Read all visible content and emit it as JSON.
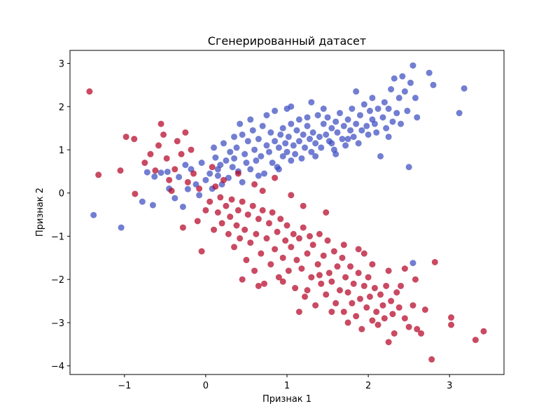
{
  "chart_data": {
    "type": "scatter",
    "title": "Сгенерированный датасет",
    "xlabel": "Признак 1",
    "ylabel": "Признак 2",
    "xlim": [
      -1.67,
      3.67
    ],
    "ylim": [
      -4.2,
      3.3
    ],
    "xticks": [
      -1,
      0,
      1,
      2,
      3
    ],
    "yticks": [
      -4,
      -3,
      -2,
      -1,
      0,
      1,
      2,
      3
    ],
    "xtick_labels": [
      "−1",
      "0",
      "1",
      "2",
      "3"
    ],
    "ytick_labels": [
      "−4",
      "−3",
      "−2",
      "−1",
      "0",
      "1",
      "2",
      "3"
    ],
    "grid": false,
    "legend": "none",
    "series": [
      {
        "color": "#3b4cc0",
        "points": [
          [
            -1.38,
            -0.51
          ],
          [
            -1.04,
            -0.8
          ],
          [
            -0.78,
            -0.2
          ],
          [
            -0.65,
            -0.28
          ],
          [
            -0.72,
            0.48
          ],
          [
            -0.63,
            0.38
          ],
          [
            -0.55,
            0.47
          ],
          [
            -0.47,
            0.49
          ],
          [
            -0.38,
            -0.12
          ],
          [
            -0.33,
            0.37
          ],
          [
            -0.28,
            -0.32
          ],
          [
            -0.22,
            0.09
          ],
          [
            -0.18,
            0.55
          ],
          [
            -0.12,
            0.2
          ],
          [
            -0.08,
            -0.05
          ],
          [
            -0.05,
            0.7
          ],
          [
            0.0,
            0.3
          ],
          [
            0.05,
            0.45
          ],
          [
            0.08,
            0.1
          ],
          [
            0.12,
            0.82
          ],
          [
            0.15,
            0.4
          ],
          [
            0.18,
            0.65
          ],
          [
            0.22,
            1.15
          ],
          [
            0.25,
            0.75
          ],
          [
            0.28,
            0.35
          ],
          [
            0.3,
            0.95
          ],
          [
            0.33,
            0.6
          ],
          [
            0.35,
            0.8
          ],
          [
            0.38,
            1.05
          ],
          [
            0.4,
            0.5
          ],
          [
            0.42,
            1.6
          ],
          [
            0.45,
            1.35
          ],
          [
            0.48,
            0.9
          ],
          [
            0.5,
            0.7
          ],
          [
            0.52,
            1.2
          ],
          [
            0.55,
            0.55
          ],
          [
            0.58,
            1.45
          ],
          [
            0.6,
            1.0
          ],
          [
            0.62,
            0.75
          ],
          [
            0.65,
            1.25
          ],
          [
            0.68,
            0.85
          ],
          [
            0.7,
            1.55
          ],
          [
            0.72,
            0.45
          ],
          [
            0.75,
            1.1
          ],
          [
            0.78,
            0.95
          ],
          [
            0.8,
            1.4
          ],
          [
            0.82,
            0.7
          ],
          [
            0.85,
            1.2
          ],
          [
            0.85,
            1.9
          ],
          [
            0.88,
            0.6
          ],
          [
            0.9,
            1.05
          ],
          [
            0.92,
            1.35
          ],
          [
            0.95,
            0.85
          ],
          [
            0.98,
            1.15
          ],
          [
            1.0,
            0.95
          ],
          [
            1.0,
            1.95
          ],
          [
            1.02,
            1.3
          ],
          [
            1.05,
            0.75
          ],
          [
            1.05,
            1.6
          ],
          [
            1.08,
            1.1
          ],
          [
            1.1,
            0.9
          ],
          [
            1.12,
            1.45
          ],
          [
            1.15,
            1.2
          ],
          [
            1.15,
            1.7
          ],
          [
            1.18,
            0.8
          ],
          [
            1.2,
            1.35
          ],
          [
            1.22,
            1.05
          ],
          [
            1.25,
            1.55
          ],
          [
            1.28,
            1.25
          ],
          [
            1.3,
            0.95
          ],
          [
            1.32,
            1.4
          ],
          [
            1.35,
            1.15
          ],
          [
            1.38,
            1.8
          ],
          [
            1.4,
            1.3
          ],
          [
            1.42,
            1.05
          ],
          [
            1.45,
            1.6
          ],
          [
            1.48,
            1.35
          ],
          [
            1.5,
            1.75
          ],
          [
            1.52,
            1.2
          ],
          [
            1.55,
            1.5
          ],
          [
            1.58,
            1.0
          ],
          [
            1.6,
            1.65
          ],
          [
            1.62,
            1.4
          ],
          [
            1.65,
            1.85
          ],
          [
            1.68,
            1.25
          ],
          [
            1.7,
            1.55
          ],
          [
            1.72,
            1.1
          ],
          [
            1.75,
            1.7
          ],
          [
            1.78,
            1.45
          ],
          [
            1.8,
            1.95
          ],
          [
            1.82,
            1.3
          ],
          [
            1.85,
            1.6
          ],
          [
            1.88,
            1.15
          ],
          [
            1.9,
            1.8
          ],
          [
            1.92,
            1.45
          ],
          [
            1.95,
            2.05
          ],
          [
            1.98,
            1.55
          ],
          [
            2.0,
            1.35
          ],
          [
            2.02,
            1.9
          ],
          [
            2.05,
            2.2
          ],
          [
            2.08,
            1.6
          ],
          [
            2.1,
            1.4
          ],
          [
            2.12,
            1.95
          ],
          [
            2.15,
            0.85
          ],
          [
            2.18,
            1.75
          ],
          [
            2.2,
            2.1
          ],
          [
            2.22,
            1.5
          ],
          [
            2.25,
            1.95
          ],
          [
            2.28,
            2.4
          ],
          [
            2.3,
            1.65
          ],
          [
            2.32,
            2.65
          ],
          [
            2.35,
            1.85
          ],
          [
            2.38,
            2.2
          ],
          [
            2.4,
            1.6
          ],
          [
            2.42,
            2.7
          ],
          [
            2.45,
            2.35
          ],
          [
            2.48,
            1.9
          ],
          [
            2.5,
            0.6
          ],
          [
            2.52,
            2.55
          ],
          [
            2.55,
            2.95
          ],
          [
            2.55,
            -1.62
          ],
          [
            2.58,
            2.2
          ],
          [
            2.6,
            1.75
          ],
          [
            2.75,
            2.78
          ],
          [
            2.8,
            2.5
          ],
          [
            3.12,
            1.85
          ],
          [
            3.18,
            2.42
          ],
          [
            0.1,
            1.05
          ],
          [
            0.2,
            0.2
          ],
          [
            0.35,
            1.3
          ],
          [
            0.55,
            1.7
          ],
          [
            0.65,
            0.4
          ],
          [
            0.75,
            1.8
          ],
          [
            0.95,
            1.5
          ],
          [
            1.05,
            2.0
          ],
          [
            1.25,
            1.75
          ],
          [
            1.35,
            0.85
          ],
          [
            1.45,
            1.95
          ],
          [
            1.55,
            1.15
          ],
          [
            1.75,
            1.25
          ],
          [
            1.85,
            2.35
          ],
          [
            2.05,
            1.7
          ],
          [
            1.3,
            2.1
          ],
          [
            0.9,
            0.55
          ],
          [
            0.45,
            0.25
          ],
          [
            0.15,
            0.55
          ],
          [
            -0.25,
            0.65
          ],
          [
            -0.45,
            0.1
          ],
          [
            1.6,
            0.9
          ],
          [
            2.25,
            1.3
          ]
        ]
      },
      {
        "color": "#b40426",
        "points": [
          [
            -1.43,
            2.35
          ],
          [
            -1.32,
            0.42
          ],
          [
            -1.05,
            0.52
          ],
          [
            -0.98,
            1.3
          ],
          [
            -0.88,
            1.25
          ],
          [
            -0.87,
            -0.02
          ],
          [
            -0.75,
            0.7
          ],
          [
            -0.68,
            0.9
          ],
          [
            -0.62,
            0.52
          ],
          [
            -0.58,
            1.1
          ],
          [
            -0.55,
            1.6
          ],
          [
            -0.52,
            1.35
          ],
          [
            -0.48,
            0.8
          ],
          [
            -0.45,
            0.3
          ],
          [
            -0.42,
            0.05
          ],
          [
            -0.38,
            0.55
          ],
          [
            -0.35,
            1.2
          ],
          [
            -0.3,
            0.9
          ],
          [
            -0.28,
            -0.8
          ],
          [
            -0.25,
            1.4
          ],
          [
            -0.22,
            0.25
          ],
          [
            -0.18,
            1.0
          ],
          [
            -0.15,
            0.45
          ],
          [
            -0.1,
            -0.65
          ],
          [
            -0.08,
            0.1
          ],
          [
            -0.05,
            -1.35
          ],
          [
            0.0,
            -0.4
          ],
          [
            0.05,
            -0.2
          ],
          [
            0.08,
            0.6
          ],
          [
            0.1,
            -0.85
          ],
          [
            0.12,
            0.15
          ],
          [
            0.15,
            -0.45
          ],
          [
            0.18,
            -0.1
          ],
          [
            0.2,
            -0.7
          ],
          [
            0.22,
            0.3
          ],
          [
            0.25,
            -0.3
          ],
          [
            0.28,
            -0.95
          ],
          [
            0.3,
            -0.55
          ],
          [
            0.32,
            -0.15
          ],
          [
            0.35,
            -1.25
          ],
          [
            0.38,
            -0.75
          ],
          [
            0.4,
            -0.4
          ],
          [
            0.42,
            -1.05
          ],
          [
            0.45,
            -0.2
          ],
          [
            0.48,
            -0.85
          ],
          [
            0.5,
            -1.55
          ],
          [
            0.52,
            -0.5
          ],
          [
            0.55,
            -1.15
          ],
          [
            0.58,
            -0.3
          ],
          [
            0.6,
            -1.8
          ],
          [
            0.62,
            -0.95
          ],
          [
            0.65,
            -0.6
          ],
          [
            0.68,
            -1.4
          ],
          [
            0.7,
            -0.4
          ],
          [
            0.72,
            -2.1
          ],
          [
            0.75,
            -1.05
          ],
          [
            0.78,
            -0.7
          ],
          [
            0.8,
            -1.65
          ],
          [
            0.82,
            -0.45
          ],
          [
            0.85,
            -1.3
          ],
          [
            0.88,
            -0.9
          ],
          [
            0.9,
            -1.95
          ],
          [
            0.92,
            -0.6
          ],
          [
            0.95,
            -1.5
          ],
          [
            0.98,
            -1.1
          ],
          [
            1.0,
            -0.75
          ],
          [
            1.02,
            -1.8
          ],
          [
            1.05,
            -1.25
          ],
          [
            1.08,
            -0.95
          ],
          [
            1.1,
            -2.2
          ],
          [
            1.12,
            -1.55
          ],
          [
            1.15,
            -1.05
          ],
          [
            1.18,
            -1.75
          ],
          [
            1.2,
            -0.8
          ],
          [
            1.22,
            -2.4
          ],
          [
            1.25,
            -1.4
          ],
          [
            1.28,
            -1.0
          ],
          [
            1.3,
            -1.95
          ],
          [
            1.32,
            -1.2
          ],
          [
            1.35,
            -2.6
          ],
          [
            1.38,
            -1.65
          ],
          [
            1.4,
            -0.95
          ],
          [
            1.42,
            -2.1
          ],
          [
            1.45,
            -1.45
          ],
          [
            1.48,
            -2.35
          ],
          [
            1.5,
            -1.1
          ],
          [
            1.52,
            -1.85
          ],
          [
            1.55,
            -2.05
          ],
          [
            1.58,
            -1.35
          ],
          [
            1.6,
            -2.55
          ],
          [
            1.62,
            -1.7
          ],
          [
            1.65,
            -2.25
          ],
          [
            1.68,
            -1.5
          ],
          [
            1.7,
            -2.75
          ],
          [
            1.72,
            -1.95
          ],
          [
            1.75,
            -2.3
          ],
          [
            1.78,
            -1.7
          ],
          [
            1.8,
            -2.55
          ],
          [
            1.82,
            -2.1
          ],
          [
            1.85,
            -2.85
          ],
          [
            1.88,
            -1.85
          ],
          [
            1.9,
            -2.45
          ],
          [
            1.92,
            -3.15
          ],
          [
            1.95,
            -2.15
          ],
          [
            1.98,
            -2.65
          ],
          [
            2.0,
            -1.95
          ],
          [
            2.02,
            -2.4
          ],
          [
            2.05,
            -2.95
          ],
          [
            2.08,
            -2.2
          ],
          [
            2.1,
            -2.75
          ],
          [
            2.12,
            -3.05
          ],
          [
            2.15,
            -2.35
          ],
          [
            2.18,
            -2.6
          ],
          [
            2.2,
            -2.9
          ],
          [
            2.22,
            -2.15
          ],
          [
            2.25,
            -3.45
          ],
          [
            2.28,
            -2.5
          ],
          [
            2.3,
            -2.8
          ],
          [
            2.32,
            -3.25
          ],
          [
            2.35,
            -2.3
          ],
          [
            2.38,
            -2.65
          ],
          [
            2.4,
            -2.15
          ],
          [
            2.45,
            -2.9
          ],
          [
            2.5,
            -3.1
          ],
          [
            2.55,
            -2.6
          ],
          [
            2.6,
            -3.15
          ],
          [
            2.65,
            -3.25
          ],
          [
            2.7,
            -2.7
          ],
          [
            2.78,
            -3.85
          ],
          [
            2.82,
            -1.6
          ],
          [
            3.02,
            -2.88
          ],
          [
            3.02,
            -3.05
          ],
          [
            3.32,
            -3.4
          ],
          [
            3.42,
            -3.2
          ],
          [
            1.48,
            -0.45
          ],
          [
            1.7,
            -1.2
          ],
          [
            1.88,
            -1.3
          ],
          [
            2.05,
            -1.65
          ],
          [
            2.25,
            -1.8
          ],
          [
            2.45,
            -1.75
          ],
          [
            2.58,
            -2.0
          ],
          [
            1.2,
            -0.3
          ],
          [
            1.05,
            -0.05
          ],
          [
            0.7,
            0.05
          ],
          [
            0.4,
            0.45
          ],
          [
            0.6,
            0.2
          ],
          [
            0.85,
            0.35
          ],
          [
            1.15,
            -2.75
          ],
          [
            0.95,
            -2.05
          ],
          [
            0.65,
            -2.15
          ],
          [
            0.45,
            -2.0
          ],
          [
            1.55,
            -2.75
          ],
          [
            1.75,
            -3.0
          ],
          [
            1.95,
            -1.4
          ],
          [
            1.4,
            -1.9
          ],
          [
            1.25,
            -2.25
          ]
        ]
      }
    ]
  }
}
